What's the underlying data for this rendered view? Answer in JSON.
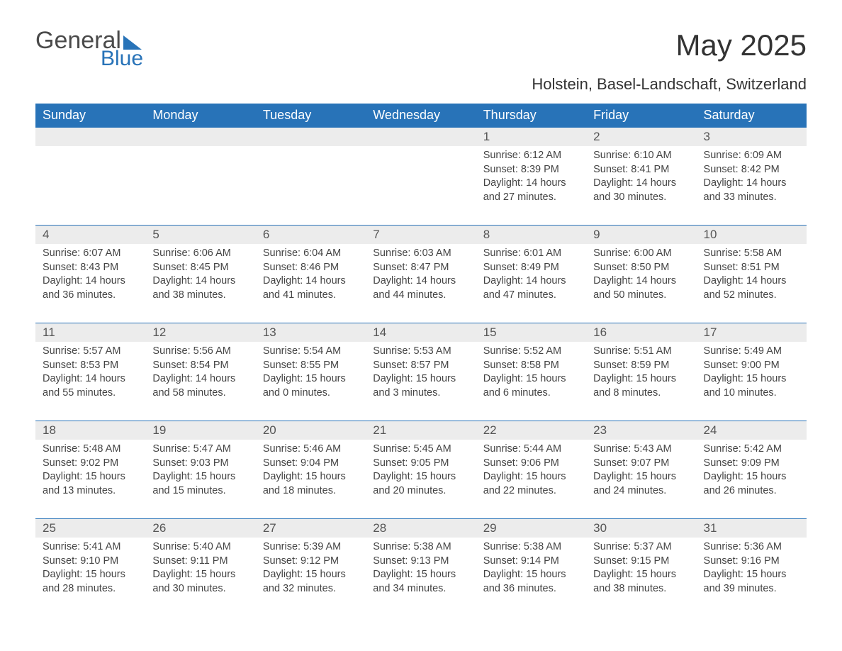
{
  "logo": {
    "general": "General",
    "blue": "Blue"
  },
  "title": "May 2025",
  "subtitle": "Holstein, Basel-Landschaft, Switzerland",
  "colors": {
    "brand_blue": "#2873b8",
    "header_text": "#ffffff",
    "daynum_bg": "#ececec",
    "text": "#333333",
    "body_text": "#444444",
    "background": "#ffffff"
  },
  "typography": {
    "title_fontsize": 42,
    "subtitle_fontsize": 22,
    "logo_fontsize": 34,
    "th_fontsize": 18,
    "daynum_fontsize": 17,
    "cell_fontsize": 14.5
  },
  "weekdays": [
    "Sunday",
    "Monday",
    "Tuesday",
    "Wednesday",
    "Thursday",
    "Friday",
    "Saturday"
  ],
  "weeks": [
    [
      null,
      null,
      null,
      null,
      {
        "n": "1",
        "sr": "Sunrise: 6:12 AM",
        "ss": "Sunset: 8:39 PM",
        "d1": "Daylight: 14 hours",
        "d2": "and 27 minutes."
      },
      {
        "n": "2",
        "sr": "Sunrise: 6:10 AM",
        "ss": "Sunset: 8:41 PM",
        "d1": "Daylight: 14 hours",
        "d2": "and 30 minutes."
      },
      {
        "n": "3",
        "sr": "Sunrise: 6:09 AM",
        "ss": "Sunset: 8:42 PM",
        "d1": "Daylight: 14 hours",
        "d2": "and 33 minutes."
      }
    ],
    [
      {
        "n": "4",
        "sr": "Sunrise: 6:07 AM",
        "ss": "Sunset: 8:43 PM",
        "d1": "Daylight: 14 hours",
        "d2": "and 36 minutes."
      },
      {
        "n": "5",
        "sr": "Sunrise: 6:06 AM",
        "ss": "Sunset: 8:45 PM",
        "d1": "Daylight: 14 hours",
        "d2": "and 38 minutes."
      },
      {
        "n": "6",
        "sr": "Sunrise: 6:04 AM",
        "ss": "Sunset: 8:46 PM",
        "d1": "Daylight: 14 hours",
        "d2": "and 41 minutes."
      },
      {
        "n": "7",
        "sr": "Sunrise: 6:03 AM",
        "ss": "Sunset: 8:47 PM",
        "d1": "Daylight: 14 hours",
        "d2": "and 44 minutes."
      },
      {
        "n": "8",
        "sr": "Sunrise: 6:01 AM",
        "ss": "Sunset: 8:49 PM",
        "d1": "Daylight: 14 hours",
        "d2": "and 47 minutes."
      },
      {
        "n": "9",
        "sr": "Sunrise: 6:00 AM",
        "ss": "Sunset: 8:50 PM",
        "d1": "Daylight: 14 hours",
        "d2": "and 50 minutes."
      },
      {
        "n": "10",
        "sr": "Sunrise: 5:58 AM",
        "ss": "Sunset: 8:51 PM",
        "d1": "Daylight: 14 hours",
        "d2": "and 52 minutes."
      }
    ],
    [
      {
        "n": "11",
        "sr": "Sunrise: 5:57 AM",
        "ss": "Sunset: 8:53 PM",
        "d1": "Daylight: 14 hours",
        "d2": "and 55 minutes."
      },
      {
        "n": "12",
        "sr": "Sunrise: 5:56 AM",
        "ss": "Sunset: 8:54 PM",
        "d1": "Daylight: 14 hours",
        "d2": "and 58 minutes."
      },
      {
        "n": "13",
        "sr": "Sunrise: 5:54 AM",
        "ss": "Sunset: 8:55 PM",
        "d1": "Daylight: 15 hours",
        "d2": "and 0 minutes."
      },
      {
        "n": "14",
        "sr": "Sunrise: 5:53 AM",
        "ss": "Sunset: 8:57 PM",
        "d1": "Daylight: 15 hours",
        "d2": "and 3 minutes."
      },
      {
        "n": "15",
        "sr": "Sunrise: 5:52 AM",
        "ss": "Sunset: 8:58 PM",
        "d1": "Daylight: 15 hours",
        "d2": "and 6 minutes."
      },
      {
        "n": "16",
        "sr": "Sunrise: 5:51 AM",
        "ss": "Sunset: 8:59 PM",
        "d1": "Daylight: 15 hours",
        "d2": "and 8 minutes."
      },
      {
        "n": "17",
        "sr": "Sunrise: 5:49 AM",
        "ss": "Sunset: 9:00 PM",
        "d1": "Daylight: 15 hours",
        "d2": "and 10 minutes."
      }
    ],
    [
      {
        "n": "18",
        "sr": "Sunrise: 5:48 AM",
        "ss": "Sunset: 9:02 PM",
        "d1": "Daylight: 15 hours",
        "d2": "and 13 minutes."
      },
      {
        "n": "19",
        "sr": "Sunrise: 5:47 AM",
        "ss": "Sunset: 9:03 PM",
        "d1": "Daylight: 15 hours",
        "d2": "and 15 minutes."
      },
      {
        "n": "20",
        "sr": "Sunrise: 5:46 AM",
        "ss": "Sunset: 9:04 PM",
        "d1": "Daylight: 15 hours",
        "d2": "and 18 minutes."
      },
      {
        "n": "21",
        "sr": "Sunrise: 5:45 AM",
        "ss": "Sunset: 9:05 PM",
        "d1": "Daylight: 15 hours",
        "d2": "and 20 minutes."
      },
      {
        "n": "22",
        "sr": "Sunrise: 5:44 AM",
        "ss": "Sunset: 9:06 PM",
        "d1": "Daylight: 15 hours",
        "d2": "and 22 minutes."
      },
      {
        "n": "23",
        "sr": "Sunrise: 5:43 AM",
        "ss": "Sunset: 9:07 PM",
        "d1": "Daylight: 15 hours",
        "d2": "and 24 minutes."
      },
      {
        "n": "24",
        "sr": "Sunrise: 5:42 AM",
        "ss": "Sunset: 9:09 PM",
        "d1": "Daylight: 15 hours",
        "d2": "and 26 minutes."
      }
    ],
    [
      {
        "n": "25",
        "sr": "Sunrise: 5:41 AM",
        "ss": "Sunset: 9:10 PM",
        "d1": "Daylight: 15 hours",
        "d2": "and 28 minutes."
      },
      {
        "n": "26",
        "sr": "Sunrise: 5:40 AM",
        "ss": "Sunset: 9:11 PM",
        "d1": "Daylight: 15 hours",
        "d2": "and 30 minutes."
      },
      {
        "n": "27",
        "sr": "Sunrise: 5:39 AM",
        "ss": "Sunset: 9:12 PM",
        "d1": "Daylight: 15 hours",
        "d2": "and 32 minutes."
      },
      {
        "n": "28",
        "sr": "Sunrise: 5:38 AM",
        "ss": "Sunset: 9:13 PM",
        "d1": "Daylight: 15 hours",
        "d2": "and 34 minutes."
      },
      {
        "n": "29",
        "sr": "Sunrise: 5:38 AM",
        "ss": "Sunset: 9:14 PM",
        "d1": "Daylight: 15 hours",
        "d2": "and 36 minutes."
      },
      {
        "n": "30",
        "sr": "Sunrise: 5:37 AM",
        "ss": "Sunset: 9:15 PM",
        "d1": "Daylight: 15 hours",
        "d2": "and 38 minutes."
      },
      {
        "n": "31",
        "sr": "Sunrise: 5:36 AM",
        "ss": "Sunset: 9:16 PM",
        "d1": "Daylight: 15 hours",
        "d2": "and 39 minutes."
      }
    ]
  ]
}
